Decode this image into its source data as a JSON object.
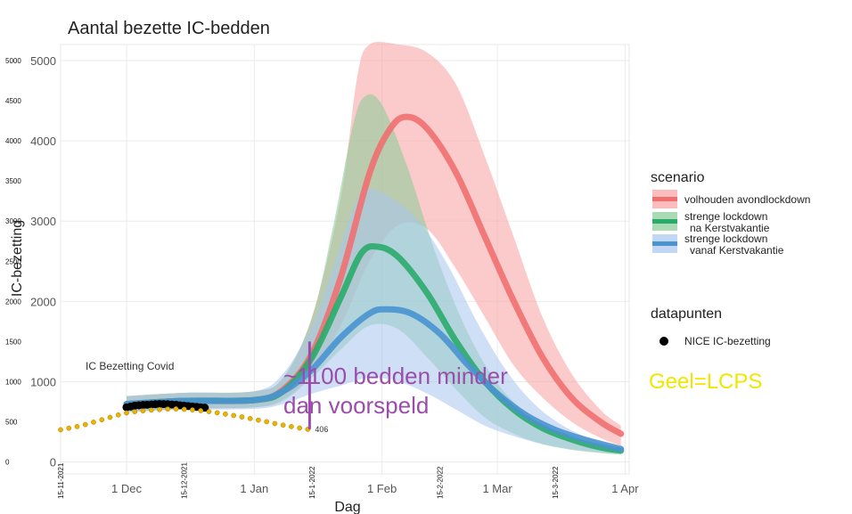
{
  "chart_data": {
    "type": "line",
    "title": "Aantal bezette IC-bedden",
    "xlabel": "Dag",
    "ylabel": "IC-bezetting",
    "x_range": [
      "2021-11-15",
      "2022-04-02"
    ],
    "y_range": [
      -150,
      5200
    ],
    "x_ticks": [
      {
        "date": "2021-12-01",
        "label": "1 Dec"
      },
      {
        "date": "2022-01-01",
        "label": "1 Jan"
      },
      {
        "date": "2022-02-01",
        "label": "1 Feb"
      },
      {
        "date": "2022-03-01",
        "label": "1 Mar"
      },
      {
        "date": "2022-04-01",
        "label": "1 Apr"
      }
    ],
    "y_ticks": [
      0,
      1000,
      2000,
      3000,
      4000,
      5000
    ],
    "secondary_x_ticks": [
      {
        "date": "2021-11-15",
        "label": "15-11-2021"
      },
      {
        "date": "2021-12-15",
        "label": "15-12-2021"
      },
      {
        "date": "2022-01-15",
        "label": "15-1-2022"
      },
      {
        "date": "2022-02-15",
        "label": "15-2-2022"
      },
      {
        "date": "2022-03-15",
        "label": "15-3-2022"
      }
    ],
    "secondary_y_ticks": [
      0,
      500,
      1000,
      1500,
      2000,
      2500,
      3000,
      3500,
      4000,
      4500,
      5000
    ],
    "grid": true,
    "legend": {
      "position": "right",
      "scenario_title": "scenario",
      "datapunten_title": "datapunten"
    },
    "series": [
      {
        "name": "volhouden avondlockdown",
        "line_color": "#f07070",
        "band_color": "#f8a0a0",
        "line": [
          [
            "2021-12-01",
            720
          ],
          [
            "2021-12-15",
            760
          ],
          [
            "2022-01-01",
            770
          ],
          [
            "2022-01-08",
            900
          ],
          [
            "2022-01-15",
            1350
          ],
          [
            "2022-01-22",
            2300
          ],
          [
            "2022-01-29",
            3600
          ],
          [
            "2022-02-03",
            4150
          ],
          [
            "2022-02-07",
            4300
          ],
          [
            "2022-02-12",
            4150
          ],
          [
            "2022-02-19",
            3600
          ],
          [
            "2022-02-26",
            2800
          ],
          [
            "2022-03-05",
            2000
          ],
          [
            "2022-03-12",
            1300
          ],
          [
            "2022-03-19",
            800
          ],
          [
            "2022-03-26",
            500
          ],
          [
            "2022-03-31",
            350
          ]
        ],
        "lower": [
          [
            "2021-12-01",
            620
          ],
          [
            "2021-12-15",
            660
          ],
          [
            "2022-01-01",
            680
          ],
          [
            "2022-01-08",
            780
          ],
          [
            "2022-01-15",
            1100
          ],
          [
            "2022-01-22",
            1700
          ],
          [
            "2022-01-29",
            2500
          ],
          [
            "2022-02-05",
            2950
          ],
          [
            "2022-02-12",
            2900
          ],
          [
            "2022-02-19",
            2400
          ],
          [
            "2022-02-26",
            1800
          ],
          [
            "2022-03-05",
            1200
          ],
          [
            "2022-03-12",
            800
          ],
          [
            "2022-03-19",
            500
          ],
          [
            "2022-03-26",
            300
          ],
          [
            "2022-03-31",
            200
          ]
        ],
        "upper": [
          [
            "2021-12-01",
            820
          ],
          [
            "2021-12-15",
            860
          ],
          [
            "2022-01-01",
            880
          ],
          [
            "2022-01-08",
            1050
          ],
          [
            "2022-01-15",
            1800
          ],
          [
            "2022-01-22",
            3300
          ],
          [
            "2022-01-26",
            4800
          ],
          [
            "2022-01-29",
            5300
          ],
          [
            "2022-02-05",
            5300
          ],
          [
            "2022-02-12",
            5100
          ],
          [
            "2022-02-19",
            4700
          ],
          [
            "2022-02-26",
            3800
          ],
          [
            "2022-03-05",
            2800
          ],
          [
            "2022-03-12",
            1800
          ],
          [
            "2022-03-19",
            1100
          ],
          [
            "2022-03-26",
            650
          ],
          [
            "2022-03-31",
            450
          ]
        ]
      },
      {
        "name": "strenge lockdown\nna Kerstvakantie",
        "line_color": "#2aab6c",
        "band_color": "#86cc95",
        "line": [
          [
            "2021-12-01",
            720
          ],
          [
            "2021-12-15",
            760
          ],
          [
            "2022-01-01",
            770
          ],
          [
            "2022-01-08",
            880
          ],
          [
            "2022-01-15",
            1300
          ],
          [
            "2022-01-22",
            2050
          ],
          [
            "2022-01-27",
            2600
          ],
          [
            "2022-01-31",
            2680
          ],
          [
            "2022-02-05",
            2550
          ],
          [
            "2022-02-12",
            2100
          ],
          [
            "2022-02-19",
            1500
          ],
          [
            "2022-02-26",
            1000
          ],
          [
            "2022-03-05",
            650
          ],
          [
            "2022-03-12",
            420
          ],
          [
            "2022-03-19",
            280
          ],
          [
            "2022-03-26",
            180
          ],
          [
            "2022-03-31",
            140
          ]
        ],
        "lower": [
          [
            "2021-12-01",
            620
          ],
          [
            "2021-12-15",
            660
          ],
          [
            "2022-01-01",
            680
          ],
          [
            "2022-01-08",
            760
          ],
          [
            "2022-01-15",
            1050
          ],
          [
            "2022-01-22",
            1400
          ],
          [
            "2022-01-29",
            1700
          ],
          [
            "2022-02-05",
            1650
          ],
          [
            "2022-02-12",
            1300
          ],
          [
            "2022-02-19",
            900
          ],
          [
            "2022-02-26",
            550
          ],
          [
            "2022-03-05",
            350
          ],
          [
            "2022-03-12",
            220
          ],
          [
            "2022-03-19",
            150
          ],
          [
            "2022-03-26",
            110
          ],
          [
            "2022-03-31",
            90
          ]
        ],
        "upper": [
          [
            "2021-12-01",
            820
          ],
          [
            "2021-12-15",
            860
          ],
          [
            "2022-01-01",
            880
          ],
          [
            "2022-01-08",
            1050
          ],
          [
            "2022-01-15",
            1800
          ],
          [
            "2022-01-20",
            2900
          ],
          [
            "2022-01-25",
            4200
          ],
          [
            "2022-01-28",
            4560
          ],
          [
            "2022-02-01",
            4450
          ],
          [
            "2022-02-07",
            3700
          ],
          [
            "2022-02-14",
            2600
          ],
          [
            "2022-02-21",
            1700
          ],
          [
            "2022-02-28",
            1050
          ],
          [
            "2022-03-07",
            650
          ],
          [
            "2022-03-14",
            420
          ],
          [
            "2022-03-21",
            280
          ],
          [
            "2022-03-31",
            180
          ]
        ]
      },
      {
        "name": "strenge lockdown\nvanaf Kerstvakantie",
        "line_color": "#4a94d0",
        "band_color": "#a8c6ee",
        "line": [
          [
            "2021-12-01",
            720
          ],
          [
            "2021-12-15",
            760
          ],
          [
            "2022-01-01",
            770
          ],
          [
            "2022-01-08",
            880
          ],
          [
            "2022-01-15",
            1150
          ],
          [
            "2022-01-22",
            1550
          ],
          [
            "2022-01-29",
            1850
          ],
          [
            "2022-02-02",
            1900
          ],
          [
            "2022-02-08",
            1850
          ],
          [
            "2022-02-15",
            1600
          ],
          [
            "2022-02-22",
            1200
          ],
          [
            "2022-03-01",
            850
          ],
          [
            "2022-03-08",
            580
          ],
          [
            "2022-03-15",
            400
          ],
          [
            "2022-03-22",
            280
          ],
          [
            "2022-03-31",
            160
          ]
        ],
        "lower": [
          [
            "2021-12-01",
            620
          ],
          [
            "2021-12-15",
            650
          ],
          [
            "2022-01-01",
            660
          ],
          [
            "2022-01-08",
            720
          ],
          [
            "2022-01-15",
            850
          ],
          [
            "2022-01-22",
            950
          ],
          [
            "2022-01-29",
            1050
          ],
          [
            "2022-02-05",
            1000
          ],
          [
            "2022-02-12",
            850
          ],
          [
            "2022-02-19",
            650
          ],
          [
            "2022-02-26",
            450
          ],
          [
            "2022-03-05",
            320
          ],
          [
            "2022-03-12",
            220
          ],
          [
            "2022-03-19",
            160
          ],
          [
            "2022-03-26",
            120
          ],
          [
            "2022-03-31",
            100
          ]
        ],
        "upper": [
          [
            "2021-12-01",
            820
          ],
          [
            "2021-12-15",
            860
          ],
          [
            "2022-01-01",
            880
          ],
          [
            "2022-01-08",
            1100
          ],
          [
            "2022-01-15",
            1700
          ],
          [
            "2022-01-20",
            2400
          ],
          [
            "2022-01-25",
            3150
          ],
          [
            "2022-01-28",
            3400
          ],
          [
            "2022-02-03",
            3300
          ],
          [
            "2022-02-10",
            3000
          ],
          [
            "2022-02-17",
            2450
          ],
          [
            "2022-02-24",
            1750
          ],
          [
            "2022-03-03",
            1150
          ],
          [
            "2022-03-10",
            720
          ],
          [
            "2022-03-17",
            450
          ],
          [
            "2022-03-24",
            280
          ],
          [
            "2022-03-31",
            170
          ]
        ]
      }
    ],
    "nice_points": {
      "name": "NICE IC-bezetting",
      "color": "#000000",
      "points": [
        [
          "2021-12-01",
          680
        ],
        [
          "2021-12-02",
          690
        ],
        [
          "2021-12-03",
          700
        ],
        [
          "2021-12-04",
          705
        ],
        [
          "2021-12-05",
          710
        ],
        [
          "2021-12-06",
          712
        ],
        [
          "2021-12-07",
          715
        ],
        [
          "2021-12-08",
          718
        ],
        [
          "2021-12-09",
          722
        ],
        [
          "2021-12-10",
          720
        ],
        [
          "2021-12-11",
          718
        ],
        [
          "2021-12-12",
          715
        ],
        [
          "2021-12-13",
          712
        ],
        [
          "2021-12-14",
          705
        ],
        [
          "2021-12-15",
          700
        ],
        [
          "2021-12-16",
          695
        ],
        [
          "2021-12-17",
          690
        ],
        [
          "2021-12-18",
          685
        ],
        [
          "2021-12-19",
          680
        ],
        [
          "2021-12-20",
          675
        ]
      ]
    },
    "lcps_points": {
      "color": "#e8b400",
      "points": [
        [
          "2021-11-15",
          400
        ],
        [
          "2021-11-17",
          420
        ],
        [
          "2021-11-19",
          440
        ],
        [
          "2021-11-21",
          465
        ],
        [
          "2021-11-23",
          495
        ],
        [
          "2021-11-25",
          525
        ],
        [
          "2021-11-27",
          555
        ],
        [
          "2021-11-29",
          585
        ],
        [
          "2021-12-01",
          610
        ],
        [
          "2021-12-03",
          625
        ],
        [
          "2021-12-05",
          635
        ],
        [
          "2021-12-07",
          645
        ],
        [
          "2021-12-09",
          652
        ],
        [
          "2021-12-11",
          658
        ],
        [
          "2021-12-13",
          660
        ],
        [
          "2021-12-15",
          655
        ],
        [
          "2021-12-17",
          648
        ],
        [
          "2021-12-19",
          638
        ],
        [
          "2021-12-21",
          626
        ],
        [
          "2021-12-23",
          612
        ],
        [
          "2021-12-25",
          595
        ],
        [
          "2021-12-27",
          578
        ],
        [
          "2021-12-29",
          560
        ],
        [
          "2021-12-31",
          540
        ],
        [
          "2022-01-02",
          520
        ],
        [
          "2022-01-04",
          500
        ],
        [
          "2022-01-06",
          478
        ],
        [
          "2022-01-08",
          458
        ],
        [
          "2022-01-10",
          440
        ],
        [
          "2022-01-12",
          422
        ],
        [
          "2022-01-14",
          406
        ]
      ]
    },
    "annotations": {
      "ic_bezetting_covid": "IC Bezetting Covid",
      "last_value": "406",
      "difference_line1": "~1100 bedden minder",
      "difference_line2": "dan voorspeld",
      "geel_lcps": "Geel=LCPS",
      "marker_date": "2022-01-14",
      "marker_range": [
        406,
        1500
      ],
      "marker_color": "#9b4dab"
    }
  }
}
